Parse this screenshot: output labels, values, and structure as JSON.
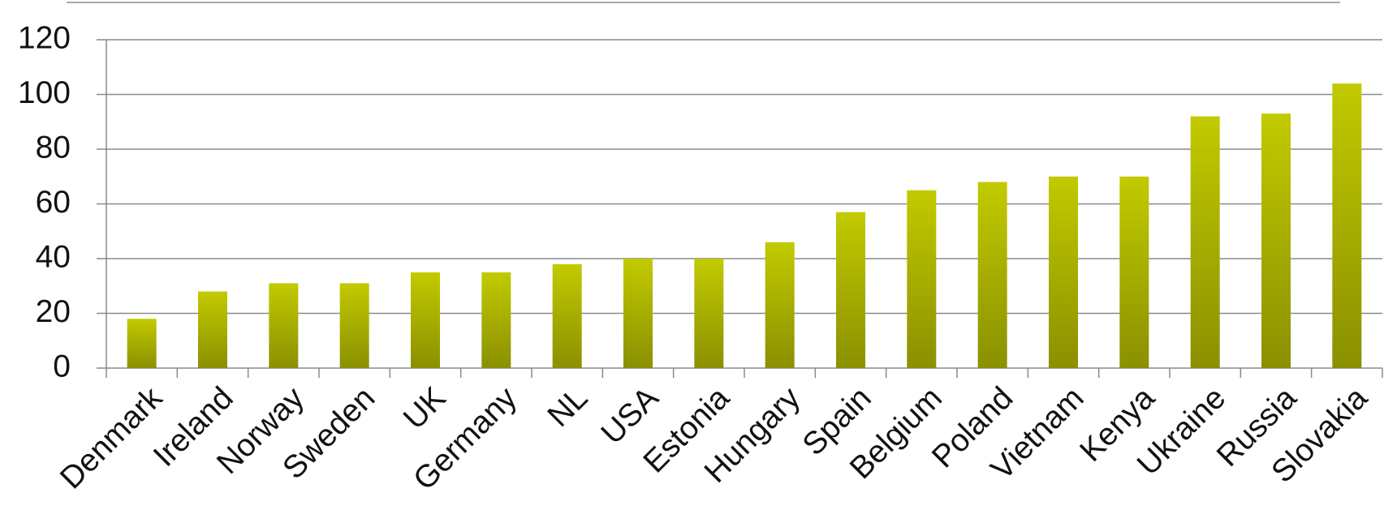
{
  "chart_data": {
    "type": "bar",
    "categories": [
      "Denmark",
      "Ireland",
      "Norway",
      "Sweden",
      "UK",
      "Germany",
      "NL",
      "USA",
      "Estonia",
      "Hungary",
      "Spain",
      "Belgium",
      "Poland",
      "Vietnam",
      "Kenya",
      "Ukraine",
      "Russia",
      "Slovakia"
    ],
    "values": [
      18,
      28,
      31,
      31,
      35,
      35,
      38,
      40,
      40,
      46,
      57,
      65,
      68,
      70,
      70,
      92,
      93,
      104
    ],
    "color": "#c2ca00",
    "ylim": [
      0,
      120
    ],
    "yticks": [
      0,
      20,
      40,
      60,
      80,
      100,
      120
    ],
    "grid": true
  }
}
